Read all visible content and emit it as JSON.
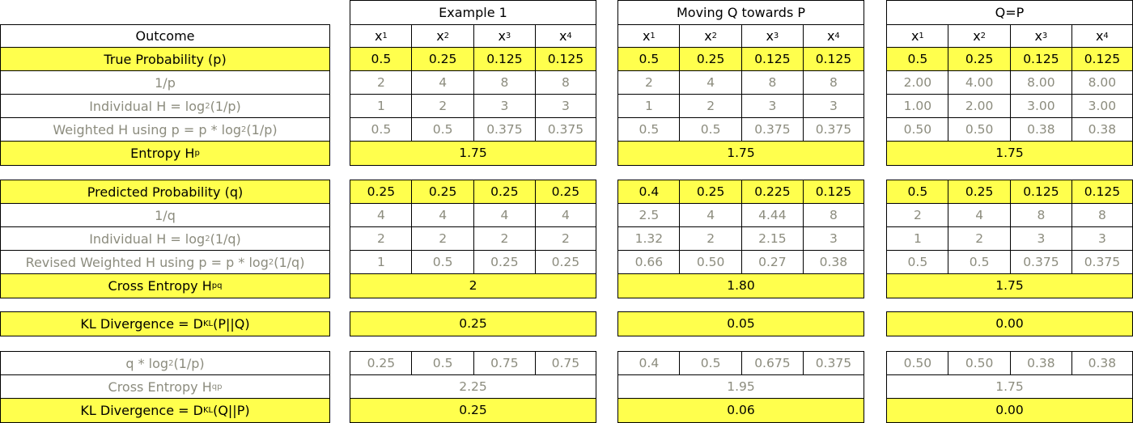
{
  "groups": [
    "Example 1",
    "Moving Q towards P",
    "Q=P"
  ],
  "colors": {
    "highlight": "#ffff4d",
    "muted_text": "#8c8c7e",
    "border": "#000000"
  },
  "outcome_label": "Outcome",
  "xcols": [
    "x1",
    "x2",
    "x3",
    "x4"
  ],
  "rows": [
    {
      "label": "True Probability (p)",
      "style": "yellow",
      "g": [
        [
          "0.5",
          "0.25",
          "0.125",
          "0.125"
        ],
        [
          "0.5",
          "0.25",
          "0.125",
          "0.125"
        ],
        [
          "0.5",
          "0.25",
          "0.125",
          "0.125"
        ]
      ]
    },
    {
      "label": "1/p",
      "style": "grey",
      "g": [
        [
          "2",
          "4",
          "8",
          "8"
        ],
        [
          "2",
          "4",
          "8",
          "8"
        ],
        [
          "2.00",
          "4.00",
          "8.00",
          "8.00"
        ]
      ]
    },
    {
      "label": "Individual H = log2 (1/p)",
      "style": "grey",
      "g": [
        [
          "1",
          "2",
          "3",
          "3"
        ],
        [
          "1",
          "2",
          "3",
          "3"
        ],
        [
          "1.00",
          "2.00",
          "3.00",
          "3.00"
        ]
      ]
    },
    {
      "label": "Weighted H using p = p * log2 (1/p)",
      "style": "grey",
      "g": [
        [
          "0.5",
          "0.5",
          "0.375",
          "0.375"
        ],
        [
          "0.5",
          "0.5",
          "0.375",
          "0.375"
        ],
        [
          "0.50",
          "0.50",
          "0.38",
          "0.38"
        ]
      ]
    },
    {
      "label": "Entropy Hp",
      "style": "yellow",
      "merged": [
        "1.75",
        "1.75",
        "1.75"
      ]
    },
    {
      "label": "Predicted Probability (q)",
      "style": "yellow",
      "g": [
        [
          "0.25",
          "0.25",
          "0.25",
          "0.25"
        ],
        [
          "0.4",
          "0.25",
          "0.225",
          "0.125"
        ],
        [
          "0.5",
          "0.25",
          "0.125",
          "0.125"
        ]
      ]
    },
    {
      "label": "1/q",
      "style": "grey",
      "g": [
        [
          "4",
          "4",
          "4",
          "4"
        ],
        [
          "2.5",
          "4",
          "4.44",
          "8"
        ],
        [
          "2",
          "4",
          "8",
          "8"
        ]
      ]
    },
    {
      "label": "Individual H = log2 (1/q)",
      "style": "grey",
      "g": [
        [
          "2",
          "2",
          "2",
          "2"
        ],
        [
          "1.32",
          "2",
          "2.15",
          "3"
        ],
        [
          "1",
          "2",
          "3",
          "3"
        ]
      ]
    },
    {
      "label": "Revised Weighted H using p = p * log2 (1/q)",
      "style": "grey",
      "g": [
        [
          "1",
          "0.5",
          "0.25",
          "0.25"
        ],
        [
          "0.66",
          "0.50",
          "0.27",
          "0.38"
        ],
        [
          "0.5",
          "0.5",
          "0.375",
          "0.375"
        ]
      ]
    },
    {
      "label": "Cross Entropy Hpq",
      "style": "yellow",
      "merged": [
        "2",
        "1.80",
        "1.75"
      ]
    },
    {
      "label": "KL Divergence = DKL(P||Q)",
      "style": "yellow",
      "merged": [
        "0.25",
        "0.05",
        "0.00"
      ]
    },
    {
      "label": "q * log2 (1/p)",
      "style": "grey",
      "g": [
        [
          "0.25",
          "0.5",
          "0.75",
          "0.75"
        ],
        [
          "0.4",
          "0.5",
          "0.675",
          "0.375"
        ],
        [
          "0.50",
          "0.50",
          "0.38",
          "0.38"
        ]
      ]
    },
    {
      "label": "Cross Entropy Hqp",
      "style": "grey",
      "merged": [
        "2.25",
        "1.95",
        "1.75"
      ]
    },
    {
      "label": "KL Divergence = DKL(Q||P)",
      "style": "yellow",
      "merged": [
        "0.25",
        "0.06",
        "0.00"
      ]
    }
  ]
}
